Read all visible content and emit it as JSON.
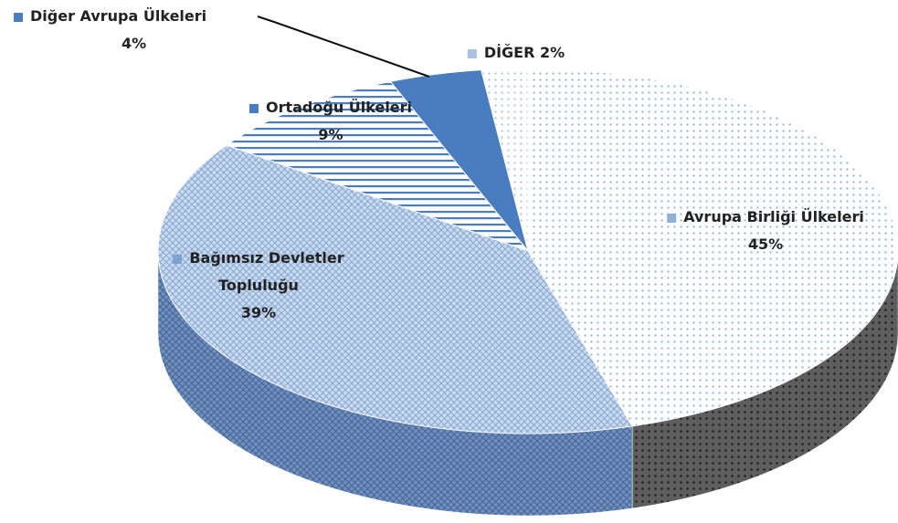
{
  "chart_data": {
    "type": "pie",
    "categories": [
      "Avrupa Birliği Ülkeleri",
      "Bağımsız Devletler Topluluğu",
      "Ortadoğu Ülkeleri",
      "Diğer Avrupa Ülkeleri",
      "DİĞER"
    ],
    "values": [
      45,
      39,
      9,
      4,
      2
    ],
    "value_labels": [
      "45%",
      "39%",
      "9%",
      "4%",
      "2%"
    ],
    "colors": [
      "#8fb0d8",
      "#7fa1cf",
      "#4a7cc0",
      "#4a7cc0",
      "#a9c1e0"
    ]
  }
}
